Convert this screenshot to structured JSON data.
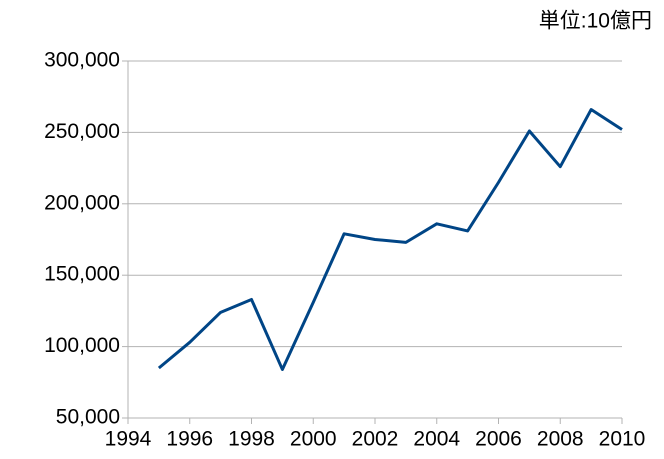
{
  "chart_data": {
    "type": "line",
    "annotation": "単位:10億円",
    "x": [
      1995,
      1996,
      1997,
      1998,
      1999,
      2000,
      2001,
      2002,
      2003,
      2004,
      2005,
      2006,
      2007,
      2008,
      2009,
      2010
    ],
    "series": [
      {
        "name": null,
        "color": "#004586",
        "values": [
          85000,
          103000,
          124000,
          133000,
          84000,
          131000,
          179000,
          175000,
          173000,
          186000,
          181000,
          215000,
          251000,
          226000,
          266000,
          252000
        ]
      }
    ],
    "xlim": [
      1994,
      2010
    ],
    "xticks": [
      1994,
      1996,
      1998,
      2000,
      2002,
      2004,
      2006,
      2008,
      2010
    ],
    "ylim": [
      50000,
      300000
    ],
    "yticks": [
      {
        "value": 50000,
        "label": "50,000"
      },
      {
        "value": 100000,
        "label": "100,000"
      },
      {
        "value": 150000,
        "label": "150,000"
      },
      {
        "value": 200000,
        "label": "200,000"
      },
      {
        "value": 250000,
        "label": "250,000"
      },
      {
        "value": 300000,
        "label": "300,000"
      }
    ],
    "grid": true
  }
}
